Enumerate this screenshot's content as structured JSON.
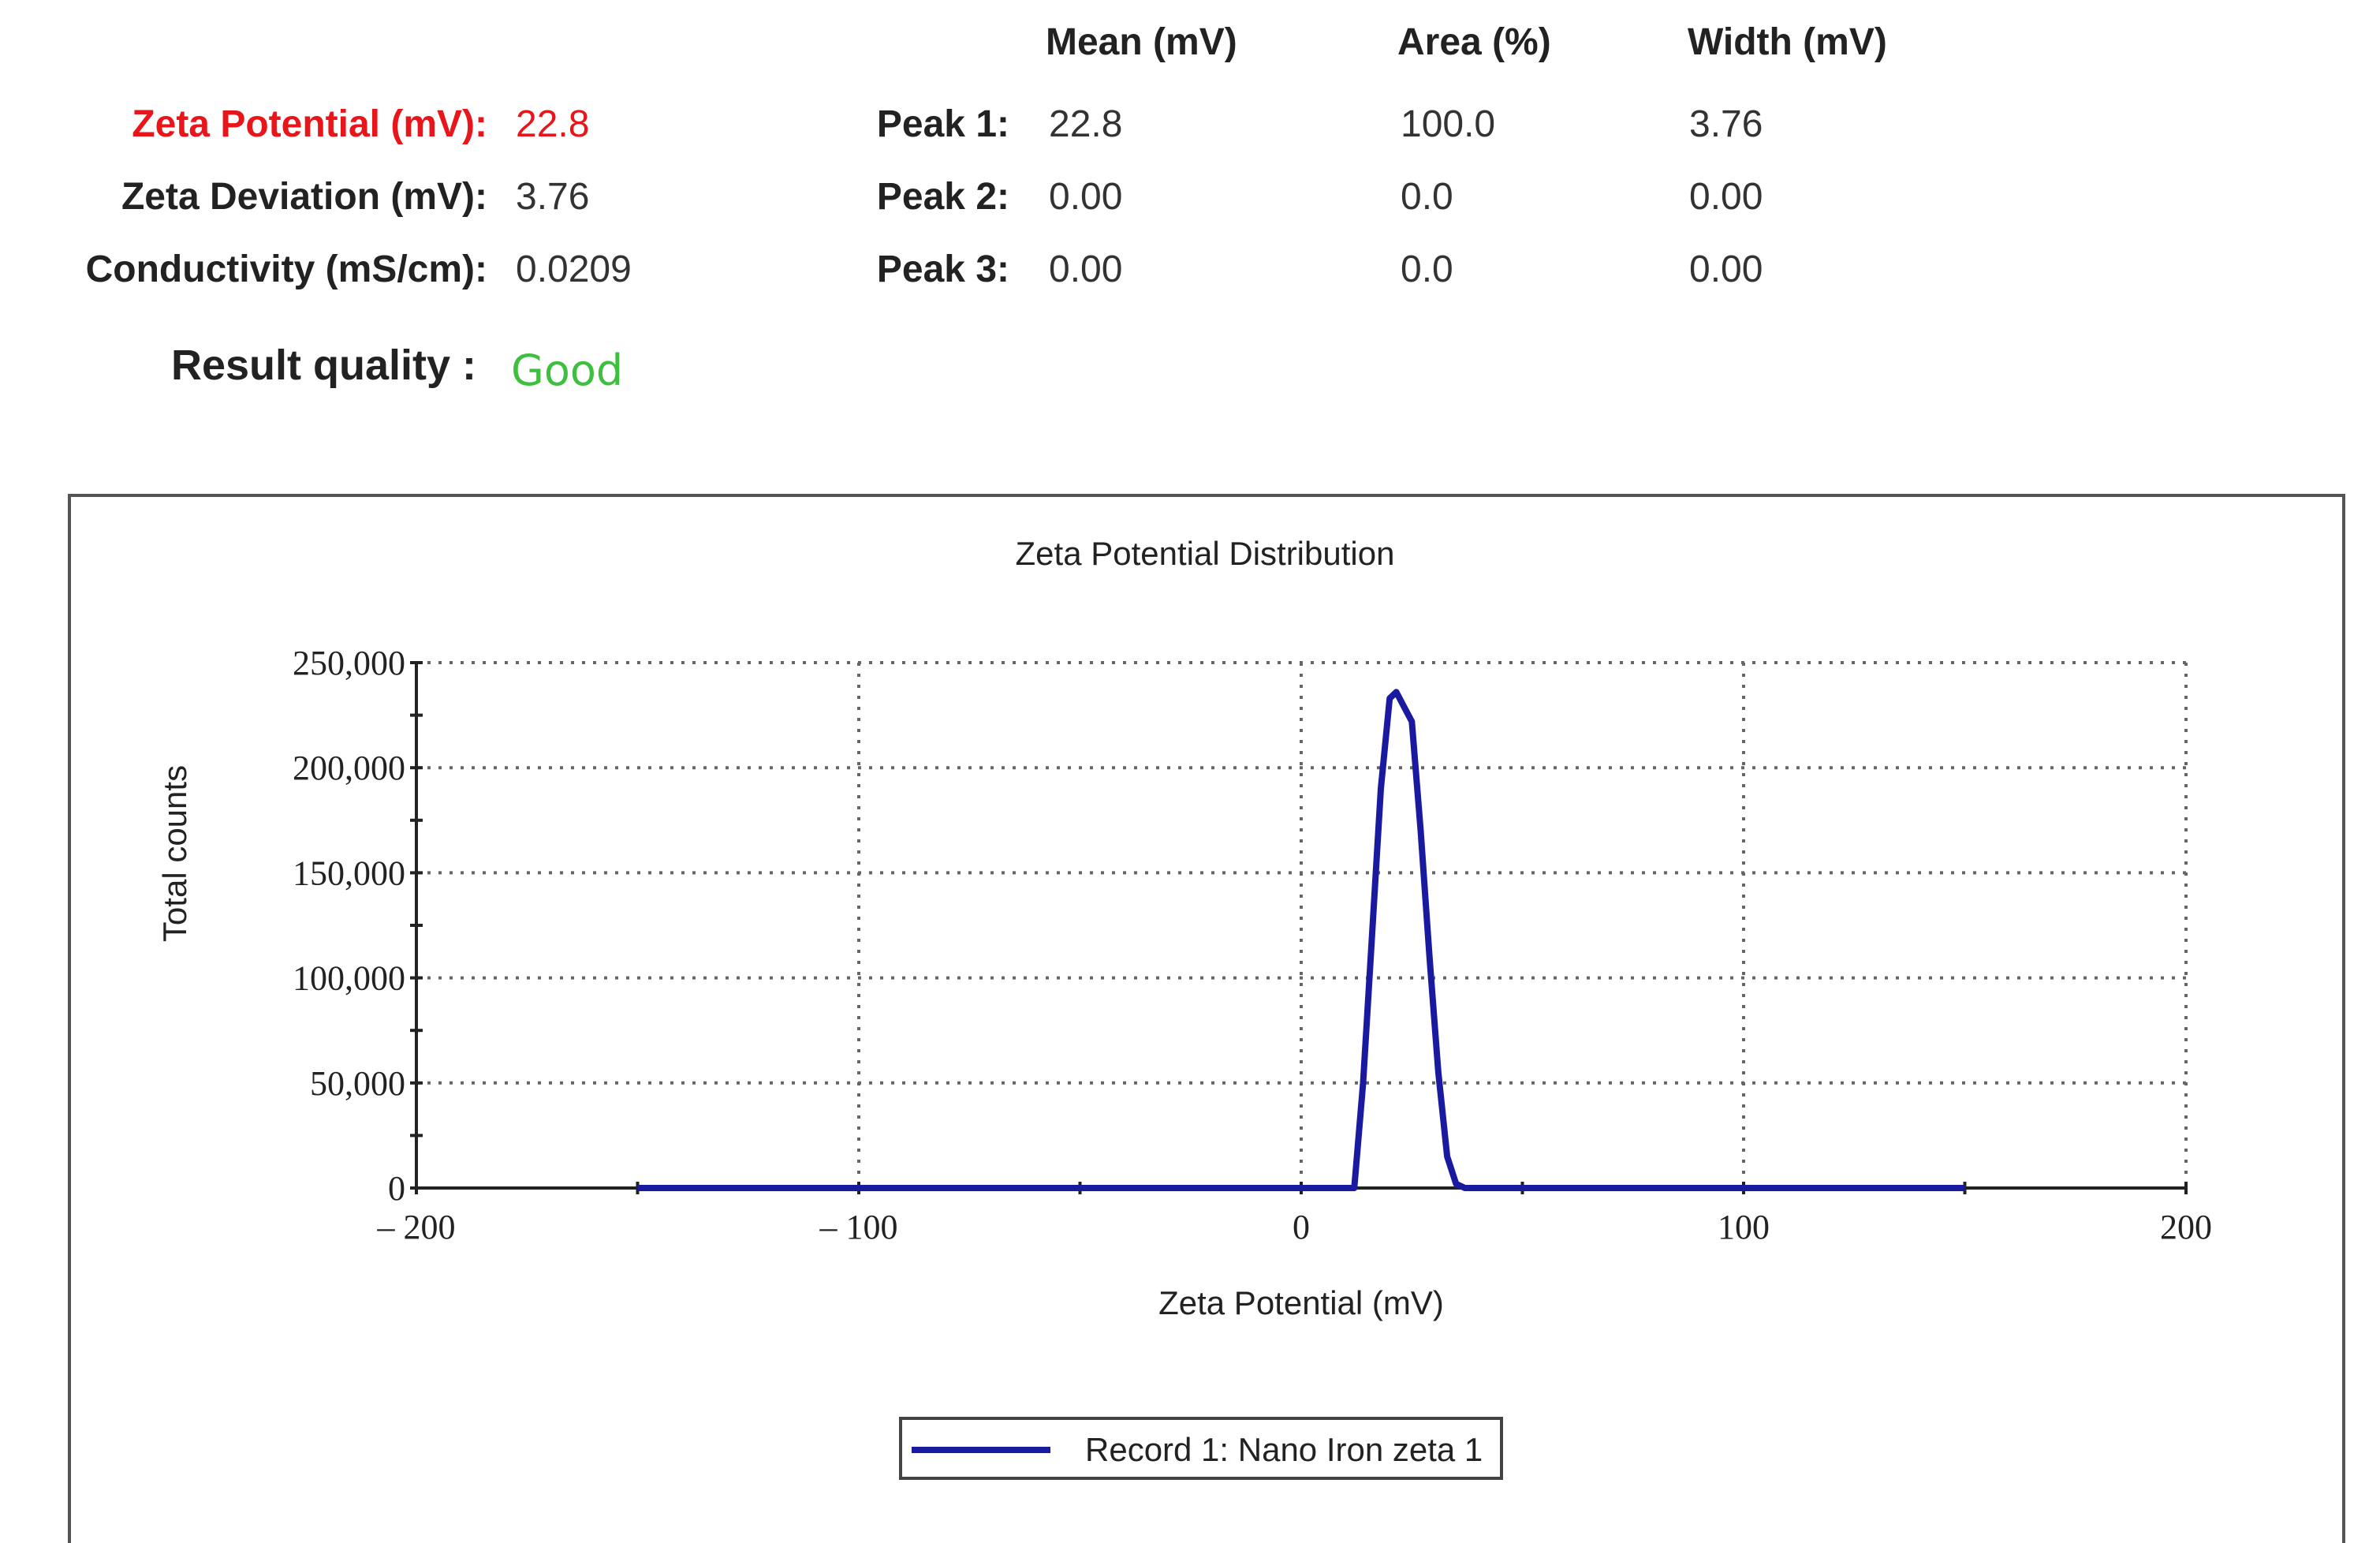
{
  "summary": {
    "zeta_potential_label": "Zeta Potential (mV):",
    "zeta_potential_value": "22.8",
    "zeta_deviation_label": "Zeta Deviation (mV):",
    "zeta_deviation_value": "3.76",
    "conductivity_label": "Conductivity (mS/cm):",
    "conductivity_value": "0.0209",
    "result_quality_label": "Result quality :",
    "result_quality_value": "Good",
    "colors": {
      "zeta_potential": "#e8151b",
      "result_quality": "#3fbf3f"
    }
  },
  "peaks": {
    "headers": [
      "Mean (mV)",
      "Area (%)",
      "Width (mV)"
    ],
    "rows": [
      {
        "label": "Peak 1:",
        "mean": "22.8",
        "area": "100.0",
        "width": "3.76"
      },
      {
        "label": "Peak 2:",
        "mean": "0.00",
        "area": "0.0",
        "width": "0.00"
      },
      {
        "label": "Peak 3:",
        "mean": "0.00",
        "area": "0.0",
        "width": "0.00"
      }
    ]
  },
  "chart_data": {
    "type": "line",
    "title": "Zeta Potential Distribution",
    "xlabel": "Zeta Potential (mV)",
    "ylabel": "Total counts",
    "xlim": [
      -200,
      200
    ],
    "ylim": [
      0,
      250000
    ],
    "x_ticks": [
      -200,
      -100,
      0,
      100,
      200
    ],
    "x_tick_labels": [
      "– 200",
      "– 100",
      "0",
      "100",
      "200"
    ],
    "y_ticks": [
      0,
      50000,
      100000,
      150000,
      200000,
      250000
    ],
    "y_tick_labels": [
      "0",
      "50,000",
      "100,000",
      "150,000",
      "200,000",
      "250,000"
    ],
    "grid": true,
    "legend_placement": "bottom-center",
    "series": [
      {
        "name": "Record 1: Nano Iron zeta 1",
        "color": "#1a1aa0",
        "x": [
          -150,
          12,
          14,
          16,
          18,
          20,
          21.5,
          23,
          25,
          27,
          29,
          31,
          33,
          35,
          37,
          150
        ],
        "y": [
          0,
          0,
          50000,
          120000,
          190000,
          233000,
          236000,
          230000,
          222000,
          170000,
          110000,
          55000,
          15000,
          2000,
          0,
          0
        ]
      }
    ]
  }
}
